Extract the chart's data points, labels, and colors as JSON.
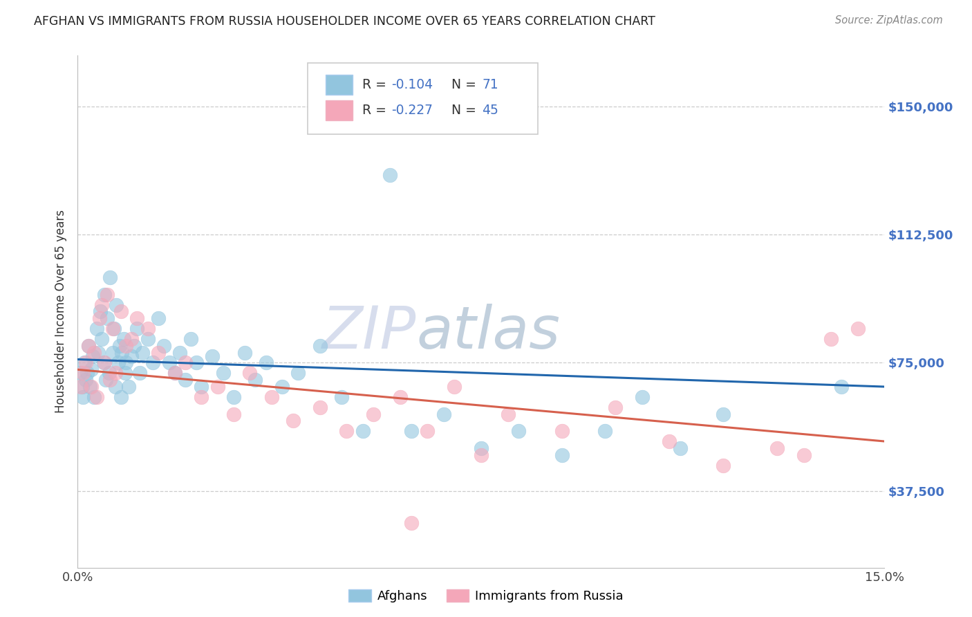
{
  "title": "AFGHAN VS IMMIGRANTS FROM RUSSIA HOUSEHOLDER INCOME OVER 65 YEARS CORRELATION CHART",
  "source": "Source: ZipAtlas.com",
  "ylabel": "Householder Income Over 65 years",
  "xlim": [
    0.0,
    15.0
  ],
  "ylim": [
    15000,
    165000
  ],
  "yticks": [
    37500,
    75000,
    112500,
    150000
  ],
  "ytick_labels": [
    "$37,500",
    "$75,000",
    "$112,500",
    "$150,000"
  ],
  "color_afghan": "#92c5de",
  "color_russia": "#f4a7b9",
  "color_line_afghan": "#2166ac",
  "color_line_russia": "#d6604d",
  "color_ytick": "#4472c4",
  "background_color": "#ffffff",
  "watermark_color": "#d0d8ea",
  "afghans_x": [
    0.05,
    0.08,
    0.1,
    0.12,
    0.15,
    0.18,
    0.2,
    0.22,
    0.25,
    0.28,
    0.3,
    0.35,
    0.38,
    0.42,
    0.45,
    0.48,
    0.5,
    0.52,
    0.55,
    0.58,
    0.6,
    0.65,
    0.68,
    0.7,
    0.72,
    0.75,
    0.78,
    0.8,
    0.82,
    0.85,
    0.88,
    0.9,
    0.95,
    1.0,
    1.05,
    1.1,
    1.15,
    1.2,
    1.3,
    1.4,
    1.5,
    1.6,
    1.7,
    1.8,
    1.9,
    2.0,
    2.1,
    2.2,
    2.3,
    2.5,
    2.7,
    2.9,
    3.1,
    3.3,
    3.5,
    3.8,
    4.1,
    4.5,
    4.9,
    5.3,
    5.8,
    6.2,
    6.8,
    7.5,
    8.2,
    9.0,
    9.8,
    10.5,
    11.2,
    12.0,
    14.2
  ],
  "afghans_y": [
    72000,
    68000,
    65000,
    75000,
    70000,
    72000,
    80000,
    68000,
    73000,
    77000,
    65000,
    85000,
    78000,
    90000,
    82000,
    75000,
    95000,
    70000,
    88000,
    72000,
    100000,
    78000,
    85000,
    68000,
    92000,
    75000,
    80000,
    65000,
    78000,
    82000,
    72000,
    75000,
    68000,
    77000,
    80000,
    85000,
    72000,
    78000,
    82000,
    75000,
    88000,
    80000,
    75000,
    72000,
    78000,
    70000,
    82000,
    75000,
    68000,
    77000,
    72000,
    65000,
    78000,
    70000,
    75000,
    68000,
    72000,
    80000,
    65000,
    55000,
    130000,
    55000,
    60000,
    50000,
    55000,
    48000,
    55000,
    65000,
    50000,
    60000,
    68000
  ],
  "russia_x": [
    0.06,
    0.1,
    0.15,
    0.2,
    0.25,
    0.3,
    0.35,
    0.4,
    0.45,
    0.5,
    0.55,
    0.6,
    0.65,
    0.7,
    0.8,
    0.9,
    1.0,
    1.1,
    1.3,
    1.5,
    1.8,
    2.0,
    2.3,
    2.6,
    2.9,
    3.2,
    3.6,
    4.0,
    4.5,
    5.0,
    5.5,
    6.0,
    6.5,
    7.0,
    7.5,
    8.0,
    9.0,
    10.0,
    11.0,
    12.0,
    13.0,
    13.5,
    14.0,
    14.5,
    6.2
  ],
  "russia_y": [
    68000,
    72000,
    75000,
    80000,
    68000,
    78000,
    65000,
    88000,
    92000,
    75000,
    95000,
    70000,
    85000,
    72000,
    90000,
    80000,
    82000,
    88000,
    85000,
    78000,
    72000,
    75000,
    65000,
    68000,
    60000,
    72000,
    65000,
    58000,
    62000,
    55000,
    60000,
    65000,
    55000,
    68000,
    48000,
    60000,
    55000,
    62000,
    52000,
    45000,
    50000,
    48000,
    82000,
    85000,
    28000
  ],
  "trend_af_y0": 76000,
  "trend_af_y1": 68000,
  "trend_ru_y0": 73000,
  "trend_ru_y1": 52000
}
